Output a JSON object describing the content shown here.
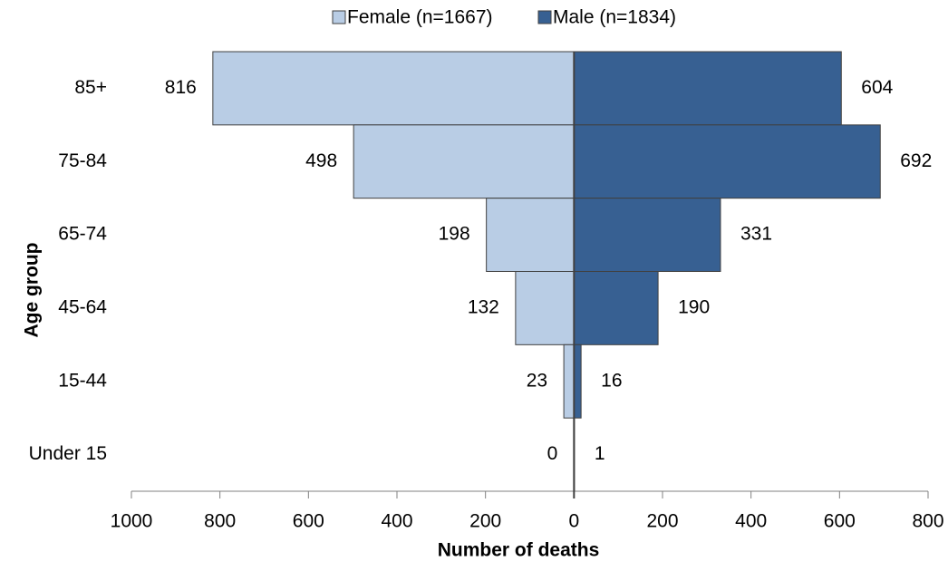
{
  "chart_data": {
    "type": "pyramid",
    "categories": [
      "85+",
      "75-84",
      "65-74",
      "45-64",
      "15-44",
      "Under 15"
    ],
    "series": [
      {
        "name": "Female (n=1667)",
        "color": "#b9cde5",
        "side": "left",
        "values": [
          816,
          498,
          198,
          132,
          23,
          0
        ]
      },
      {
        "name": "Male (n=1834)",
        "color": "#376092",
        "side": "right",
        "values": [
          604,
          692,
          331,
          190,
          16,
          1
        ]
      }
    ],
    "xlabel": "Number of deaths",
    "ylabel": "Age group",
    "xlim": [
      -1000,
      800
    ],
    "xticks": [
      {
        "value": -1000,
        "label": "1000"
      },
      {
        "value": -800,
        "label": "800"
      },
      {
        "value": -600,
        "label": "600"
      },
      {
        "value": -400,
        "label": "400"
      },
      {
        "value": -200,
        "label": "200"
      },
      0,
      200,
      400,
      600,
      800
    ],
    "legend": "top"
  }
}
